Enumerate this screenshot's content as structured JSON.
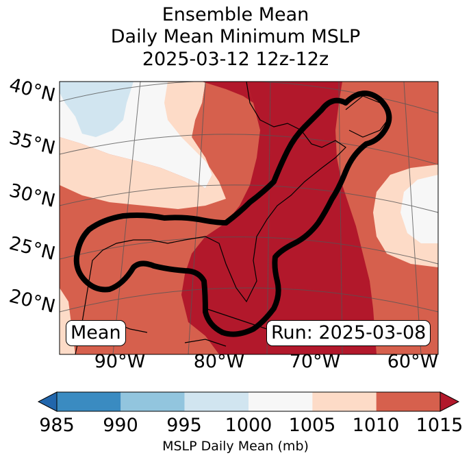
{
  "title": {
    "line1": "Ensemble Mean",
    "line2": "Daily Mean Minimum MSLP",
    "line3": "2025-03-12 12z-12z"
  },
  "map": {
    "lon_labels": [
      "90°W",
      "80°W",
      "70°W",
      "60°W"
    ],
    "lat_labels": [
      "40°N",
      "35°N",
      "30°N",
      "25°N",
      "20°N"
    ],
    "legend_box": "Mean",
    "run_box": "Run: 2025-03-08"
  },
  "colorbar": {
    "ticks": [
      "985",
      "990",
      "995",
      "1000",
      "1005",
      "1010",
      "1015"
    ],
    "label": "MSLP Daily Mean (mb)",
    "colors": [
      "#2166ac",
      "#3a8bc1",
      "#92c5de",
      "#d1e5f0",
      "#f7f7f7",
      "#fddbc7",
      "#d6604d",
      "#b2182b"
    ]
  }
}
